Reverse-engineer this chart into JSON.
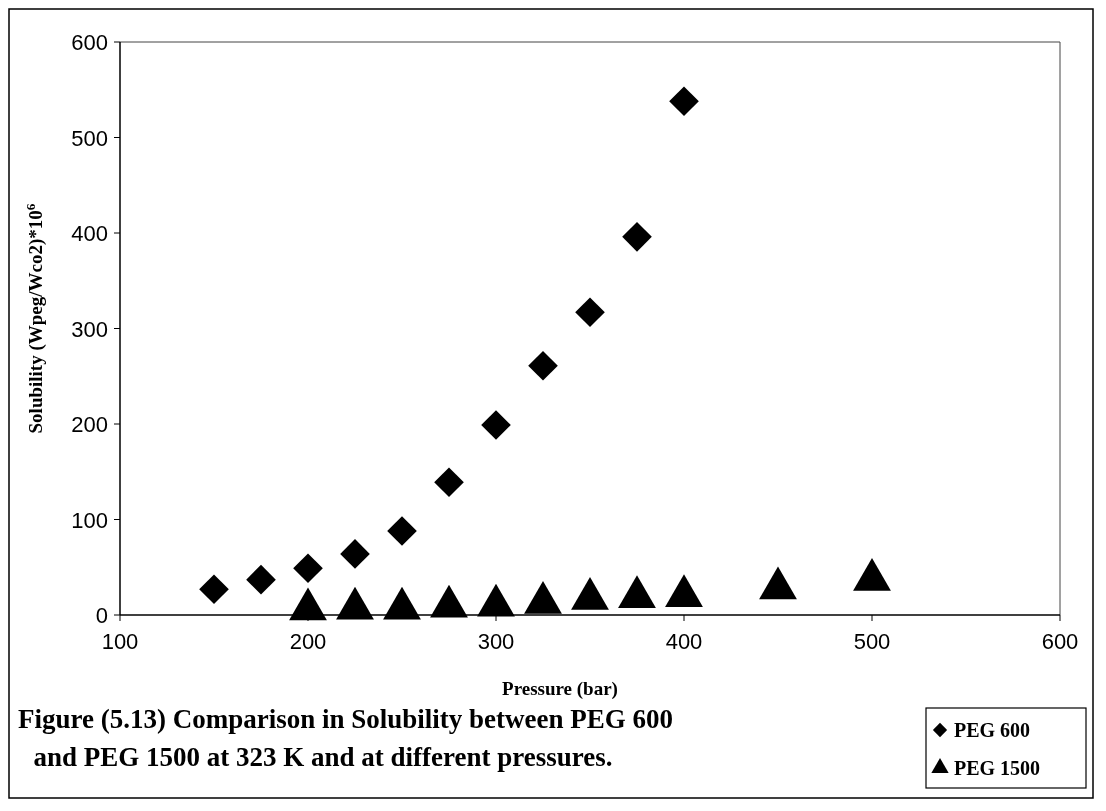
{
  "chart_data": {
    "type": "scatter",
    "title": "Figure (5.13) Comparison in Solubility between PEG 600 and PEG 1500 at 323 K and at different pressures.",
    "xlabel": "Pressure (bar)",
    "ylabel": "Solubility (Wpeg/Wco2)*10$^{6}$",
    "xlim": [
      100,
      600
    ],
    "xticks": [
      100,
      200,
      300,
      400,
      500,
      600
    ],
    "ylim": [
      0,
      600
    ],
    "yticks": [
      0,
      100,
      200,
      300,
      400,
      500,
      600
    ],
    "grid": false,
    "legend": "bottom right",
    "series": [
      {
        "name": "PEG 600",
        "color": "#000000",
        "marker": "diamond",
        "x": [
          150,
          175,
          200,
          225,
          250,
          275,
          300,
          325,
          350,
          375,
          400
        ],
        "values": [
          27,
          37,
          49,
          64,
          88,
          139,
          199,
          261,
          317,
          396,
          538
        ]
      },
      {
        "name": "PEG 1500",
        "color": "#000000",
        "marker": "triangle",
        "x": [
          200,
          225,
          250,
          275,
          300,
          325,
          350,
          375,
          400,
          450,
          500
        ],
        "values": [
          10,
          11,
          11,
          13,
          14,
          17,
          21,
          23,
          24,
          32,
          41
        ]
      }
    ]
  }
}
